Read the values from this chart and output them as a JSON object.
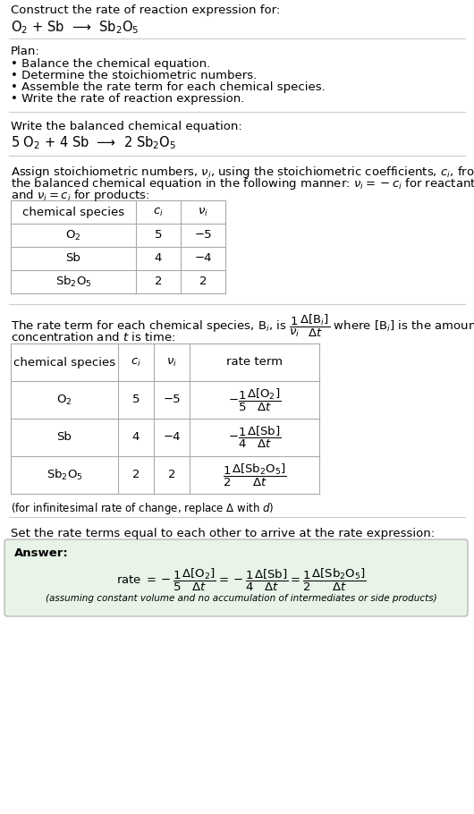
{
  "title_text": "Construct the rate of reaction expression for:",
  "reaction_unbalanced": "O$_2$ + Sb  ⟶  Sb$_2$O$_5$",
  "plan_header": "Plan:",
  "plan_items": [
    "• Balance the chemical equation.",
    "• Determine the stoichiometric numbers.",
    "• Assemble the rate term for each chemical species.",
    "• Write the rate of reaction expression."
  ],
  "balanced_header": "Write the balanced chemical equation:",
  "balanced_eq": "5 O$_2$ + 4 Sb  ⟶  2 Sb$_2$O$_5$",
  "assign_text1": "Assign stoichiometric numbers, $\\nu_i$, using the stoichiometric coefficients, $c_i$, from",
  "assign_text2": "the balanced chemical equation in the following manner: $\\nu_i = -c_i$ for reactants",
  "assign_text3": "and $\\nu_i = c_i$ for products:",
  "table1_headers": [
    "chemical species",
    "$c_i$",
    "$\\nu_i$"
  ],
  "table1_rows": [
    [
      "O$_2$",
      "5",
      "−5"
    ],
    [
      "Sb",
      "4",
      "−4"
    ],
    [
      "Sb$_2$O$_5$",
      "2",
      "2"
    ]
  ],
  "rate_text1": "The rate term for each chemical species, B$_i$, is $\\dfrac{1}{\\nu_i}\\dfrac{\\Delta[\\mathrm{B}_i]}{\\Delta t}$ where [B$_i$] is the amount",
  "rate_text2": "concentration and $t$ is time:",
  "table2_headers": [
    "chemical species",
    "$c_i$",
    "$\\nu_i$",
    "rate term"
  ],
  "table2_rows": [
    [
      "O$_2$",
      "5",
      "−5",
      "$-\\dfrac{1}{5}\\dfrac{\\Delta[\\mathrm{O_2}]}{\\Delta t}$"
    ],
    [
      "Sb",
      "4",
      "−4",
      "$-\\dfrac{1}{4}\\dfrac{\\Delta[\\mathrm{Sb}]}{\\Delta t}$"
    ],
    [
      "Sb$_2$O$_5$",
      "2",
      "2",
      "$\\dfrac{1}{2}\\dfrac{\\Delta[\\mathrm{Sb_2O_5}]}{\\Delta t}$"
    ]
  ],
  "infinitesimal_note": "(for infinitesimal rate of change, replace Δ with $d$)",
  "set_equal_text": "Set the rate terms equal to each other to arrive at the rate expression:",
  "answer_label": "Answer:",
  "answer_box_color": "#e8f4e8",
  "answer_rate": "rate $= -\\dfrac{1}{5}\\dfrac{\\Delta[\\mathrm{O_2}]}{\\Delta t} = -\\dfrac{1}{4}\\dfrac{\\Delta[\\mathrm{Sb}]}{\\Delta t} = \\dfrac{1}{2}\\dfrac{\\Delta[\\mathrm{Sb_2O_5}]}{\\Delta t}$",
  "answer_note": "(assuming constant volume and no accumulation of intermediates or side products)",
  "bg_color": "#ffffff",
  "text_color": "#000000",
  "table_line_color": "#aaaaaa",
  "divider_color": "#cccccc",
  "font_size": 9.5
}
